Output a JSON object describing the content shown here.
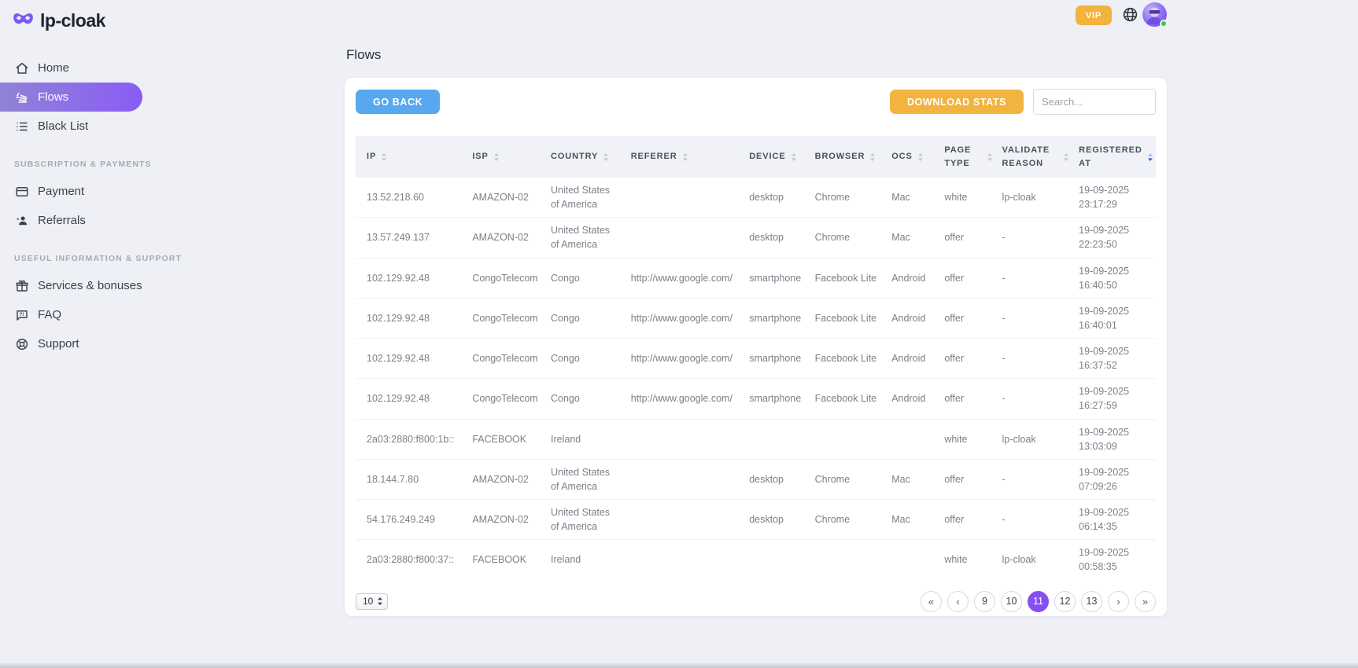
{
  "brand": {
    "name": "lp-cloak"
  },
  "topbar": {
    "vip_label": "VIP"
  },
  "sidebar": {
    "items": [
      {
        "label": "Home"
      },
      {
        "label": "Flows",
        "active": true
      },
      {
        "label": "Black List"
      }
    ],
    "sections": [
      {
        "label": "Subscription & payments",
        "items": [
          {
            "label": "Payment"
          },
          {
            "label": "Referrals"
          }
        ]
      },
      {
        "label": "Useful information & support",
        "items": [
          {
            "label": "Services & bonuses"
          },
          {
            "label": "FAQ"
          },
          {
            "label": "Support"
          }
        ]
      }
    ]
  },
  "page": {
    "title": "Flows"
  },
  "toolbar": {
    "go_back_label": "GO BACK",
    "download_stats_label": "DOWNLOAD STATS",
    "search_placeholder": "Search..."
  },
  "table": {
    "row_keys": [
      "ip",
      "isp",
      "country",
      "referer",
      "device",
      "browser",
      "ocs",
      "page_type",
      "validate_reason",
      "registered_at"
    ],
    "columns": [
      {
        "key": "ip",
        "label": "IP"
      },
      {
        "key": "isp",
        "label": "ISP"
      },
      {
        "key": "country",
        "label": "COUNTRY"
      },
      {
        "key": "referer",
        "label": "REFERER"
      },
      {
        "key": "device",
        "label": "DEVICE"
      },
      {
        "key": "browser",
        "label": "BROWSER"
      },
      {
        "key": "ocs",
        "label": "OCS"
      },
      {
        "key": "page_type",
        "label": "PAGE TYPE"
      },
      {
        "key": "validate_reason",
        "label": "VALIDATE REASON"
      },
      {
        "key": "registered_at",
        "label": "REGISTERED AT",
        "sort_active": true
      }
    ],
    "rows": [
      {
        "ip": "13.52.218.60",
        "isp": "AMAZON-02",
        "country": "United States of America",
        "referer": "",
        "device": "desktop",
        "browser": "Chrome",
        "ocs": "Mac",
        "page_type": "white",
        "validate_reason": "lp-cloak",
        "registered_at": "19-09-2025 23:17:29"
      },
      {
        "ip": "13.57.249.137",
        "isp": "AMAZON-02",
        "country": "United States of America",
        "referer": "",
        "device": "desktop",
        "browser": "Chrome",
        "ocs": "Mac",
        "page_type": "offer",
        "validate_reason": "-",
        "registered_at": "19-09-2025 22:23:50"
      },
      {
        "ip": "102.129.92.48",
        "isp": "CongoTelecom",
        "country": "Congo",
        "referer": "http://www.google.com/",
        "device": "smartphone",
        "browser": "Facebook Lite",
        "ocs": "Android",
        "page_type": "offer",
        "validate_reason": "-",
        "registered_at": "19-09-2025 16:40:50"
      },
      {
        "ip": "102.129.92.48",
        "isp": "CongoTelecom",
        "country": "Congo",
        "referer": "http://www.google.com/",
        "device": "smartphone",
        "browser": "Facebook Lite",
        "ocs": "Android",
        "page_type": "offer",
        "validate_reason": "-",
        "registered_at": "19-09-2025 16:40:01"
      },
      {
        "ip": "102.129.92.48",
        "isp": "CongoTelecom",
        "country": "Congo",
        "referer": "http://www.google.com/",
        "device": "smartphone",
        "browser": "Facebook Lite",
        "ocs": "Android",
        "page_type": "offer",
        "validate_reason": "-",
        "registered_at": "19-09-2025 16:37:52"
      },
      {
        "ip": "102.129.92.48",
        "isp": "CongoTelecom",
        "country": "Congo",
        "referer": "http://www.google.com/",
        "device": "smartphone",
        "browser": "Facebook Lite",
        "ocs": "Android",
        "page_type": "offer",
        "validate_reason": "-",
        "registered_at": "19-09-2025 16:27:59"
      },
      {
        "ip": "2a03:2880:f800:1b::",
        "isp": "FACEBOOK",
        "country": "Ireland",
        "referer": "",
        "device": "",
        "browser": "",
        "ocs": "",
        "page_type": "white",
        "validate_reason": "lp-cloak",
        "registered_at": "19-09-2025 13:03:09"
      },
      {
        "ip": "18.144.7.80",
        "isp": "AMAZON-02",
        "country": "United States of America",
        "referer": "",
        "device": "desktop",
        "browser": "Chrome",
        "ocs": "Mac",
        "page_type": "offer",
        "validate_reason": "-",
        "registered_at": "19-09-2025 07:09:26"
      },
      {
        "ip": "54.176.249.249",
        "isp": "AMAZON-02",
        "country": "United States of America",
        "referer": "",
        "device": "desktop",
        "browser": "Chrome",
        "ocs": "Mac",
        "page_type": "offer",
        "validate_reason": "-",
        "registered_at": "19-09-2025 06:14:35"
      },
      {
        "ip": "2a03:2880:f800:37::",
        "isp": "FACEBOOK",
        "country": "Ireland",
        "referer": "",
        "device": "",
        "browser": "",
        "ocs": "",
        "page_type": "white",
        "validate_reason": "lp-cloak",
        "registered_at": "19-09-2025 00:58:35"
      }
    ]
  },
  "pagination": {
    "page_size": "10",
    "pages": [
      {
        "name": "first",
        "label": "«"
      },
      {
        "name": "prev",
        "label": "‹"
      },
      {
        "name": "9",
        "label": "9"
      },
      {
        "name": "10",
        "label": "10"
      },
      {
        "name": "11",
        "label": "11",
        "active": true
      },
      {
        "name": "12",
        "label": "12"
      },
      {
        "name": "13",
        "label": "13"
      },
      {
        "name": "next",
        "label": "›"
      },
      {
        "name": "last",
        "label": "»"
      }
    ]
  },
  "colors": {
    "accent_purple": "#8a5cf5",
    "accent_blue": "#57a8ef",
    "accent_orange": "#f3b33f",
    "active_page": "#8350f2",
    "online_green": "#3ec553",
    "sort_active_blue": "#3f5fe0"
  }
}
